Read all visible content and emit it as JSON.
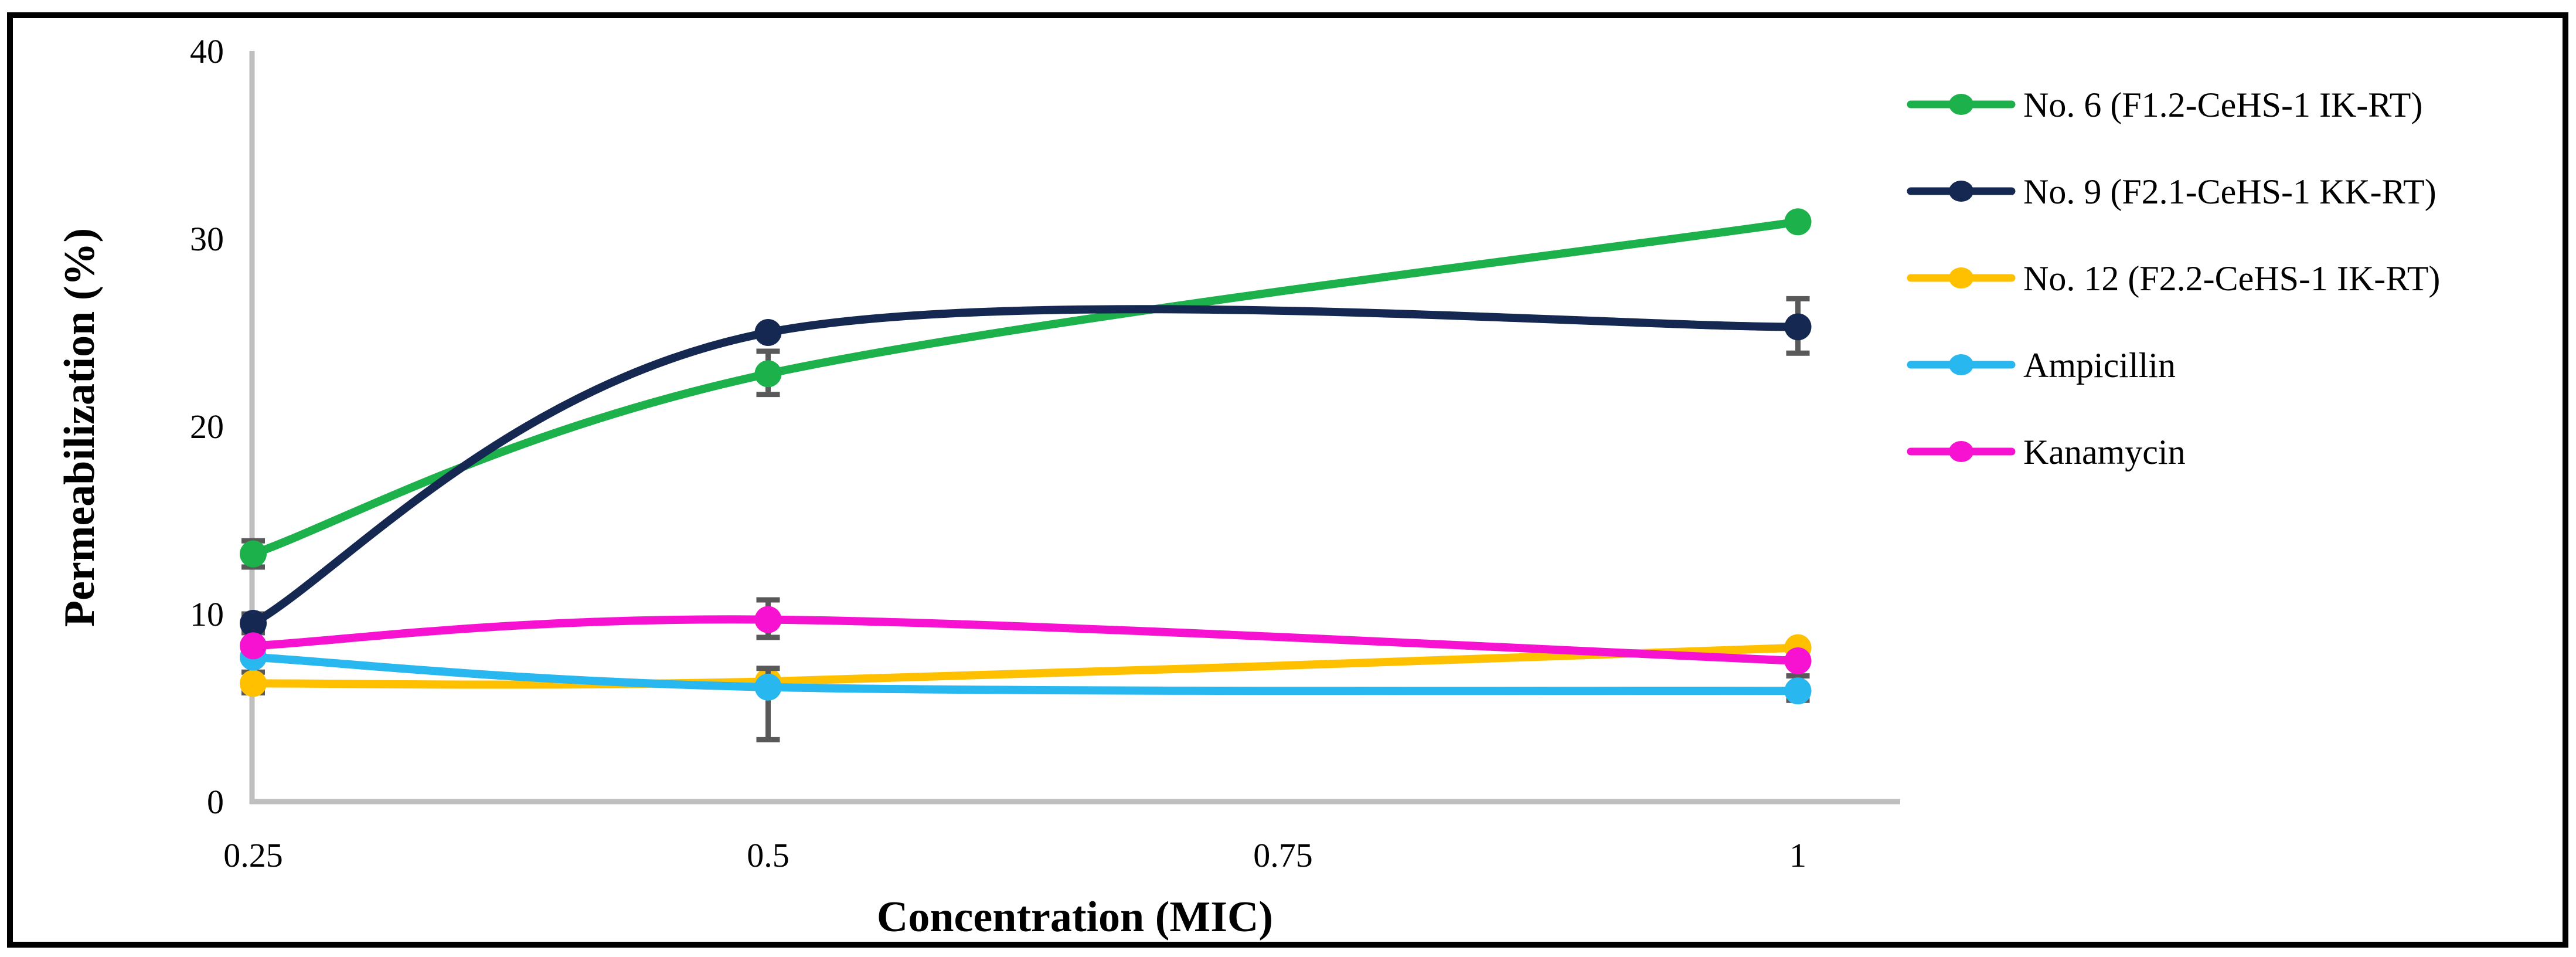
{
  "figure": {
    "background": "#FFFFFF",
    "border_color": "#000000"
  },
  "chart_data": {
    "type": "line",
    "title": "",
    "xlabel": "Concentration (MIC)",
    "ylabel": "Permeabilization (%)",
    "x": [
      0.25,
      0.5,
      1
    ],
    "x_tick_labels": [
      "0.25",
      "0.5",
      "0.75",
      "1"
    ],
    "x_tick_values": [
      0.25,
      0.5,
      0.75,
      1
    ],
    "y_ticks": [
      0,
      10,
      20,
      30,
      40
    ],
    "ylim": [
      0,
      40
    ],
    "xlim": [
      0.25,
      1.05
    ],
    "grid": false,
    "legend_position": "right",
    "line_smoothing": true,
    "marker_style": "circle",
    "axis_color": "#BFBFBF",
    "error_bar_color": "#595959",
    "text_color": "#000000",
    "series": [
      {
        "name": "No. 6 (F1.2-CeHS-1 IK-RT)",
        "color": "#1DB14C",
        "values": [
          13.2,
          22.8,
          30.9
        ],
        "error_bars": [
          {
            "x": 0.25,
            "low": 12.5,
            "high": 13.9
          },
          {
            "x": 0.5,
            "low": 21.7,
            "high": 24.0
          }
        ]
      },
      {
        "name": "No. 9 (F2.1-CeHS-1 KK-RT)",
        "color": "#152851",
        "values": [
          9.5,
          25.0,
          25.3
        ],
        "error_bars": [
          {
            "x": 0.25,
            "low": 9.0,
            "high": 10.0
          },
          {
            "x": 1,
            "low": 23.9,
            "high": 26.8
          }
        ]
      },
      {
        "name": "No. 12 (F2.2-CeHS-1 IK-RT)",
        "color": "#FFC000",
        "values": [
          6.3,
          6.4,
          8.2
        ],
        "error_bars": [
          {
            "x": 0.25,
            "low": 5.8,
            "high": 6.9
          }
        ]
      },
      {
        "name": "Ampicillin",
        "color": "#29B7EF",
        "values": [
          7.7,
          6.1,
          5.9
        ],
        "error_bars": [
          {
            "x": 0.5,
            "low": 3.3,
            "high": 7.1
          },
          {
            "x": 1,
            "low": 5.4,
            "high": 6.7
          }
        ]
      },
      {
        "name": "Kanamycin",
        "color": "#F712D2",
        "values": [
          8.3,
          9.7,
          7.5
        ],
        "error_bars": [
          {
            "x": 0.5,
            "low": 8.75,
            "high": 10.75
          }
        ]
      }
    ]
  }
}
